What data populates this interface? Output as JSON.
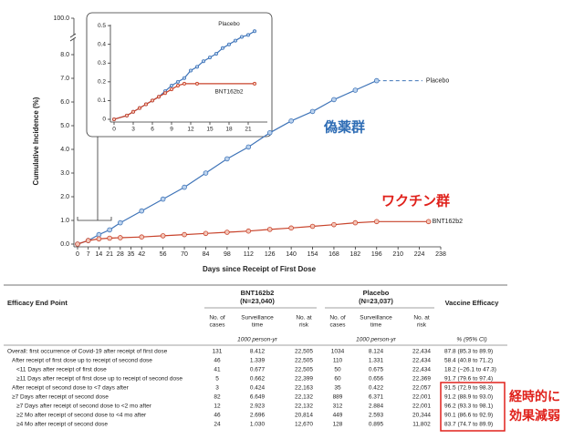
{
  "chart_data": [
    {
      "type": "line",
      "xlabel": "Days since Receipt of First Dose",
      "ylabel": "Cumulative Incidence (%)",
      "xlim": [
        0,
        238
      ],
      "xticks": [
        0,
        7,
        14,
        21,
        28,
        35,
        42,
        56,
        70,
        84,
        98,
        112,
        126,
        140,
        154,
        168,
        182,
        196,
        210,
        224,
        238
      ],
      "ylim": [
        0,
        8.8
      ],
      "yticks": [
        {
          "value": 0,
          "label": "0.0"
        },
        {
          "value": 1,
          "label": "1.0"
        },
        {
          "value": 2,
          "label": "2.0"
        },
        {
          "value": 3,
          "label": "3.0"
        },
        {
          "value": 4,
          "label": "4.0"
        },
        {
          "value": 5,
          "label": "5.0"
        },
        {
          "value": 6,
          "label": "6.0"
        },
        {
          "value": 7,
          "label": "7.0"
        },
        {
          "value": 8,
          "label": "8.0"
        }
      ],
      "ybreak_tick": {
        "value": 100,
        "label": "100.0"
      },
      "series": [
        {
          "name": "Placebo",
          "color": "#3f74b8",
          "x": [
            0,
            7,
            14,
            21,
            28,
            42,
            56,
            70,
            84,
            98,
            112,
            126,
            140,
            154,
            168,
            182,
            196
          ],
          "values": [
            0,
            0.15,
            0.4,
            0.6,
            0.9,
            1.4,
            1.9,
            2.4,
            3.0,
            3.6,
            4.1,
            4.7,
            5.2,
            5.6,
            6.1,
            6.5,
            6.9
          ],
          "dashed_x": [
            196,
            226
          ],
          "dashed_values": [
            6.9,
            6.9
          ]
        },
        {
          "name": "BNT162b2",
          "color": "#c8432b",
          "x": [
            0,
            7,
            14,
            21,
            28,
            42,
            56,
            70,
            84,
            98,
            112,
            126,
            140,
            154,
            168,
            182,
            196,
            230
          ],
          "values": [
            0,
            0.15,
            0.22,
            0.25,
            0.27,
            0.3,
            0.35,
            0.4,
            0.45,
            0.5,
            0.55,
            0.62,
            0.68,
            0.75,
            0.82,
            0.9,
            0.95,
            0.95
          ]
        }
      ]
    },
    {
      "type": "line",
      "xlim": [
        0,
        24
      ],
      "xticks": [
        0,
        3,
        6,
        9,
        12,
        15,
        18,
        21
      ],
      "ylim": [
        0,
        0.52
      ],
      "yticks": [
        0,
        0.1,
        0.2,
        0.3,
        0.4,
        0.5
      ],
      "series": [
        {
          "name": "Placebo",
          "color": "#3f74b8",
          "x": [
            0,
            2,
            3,
            4,
            5,
            6,
            7,
            8,
            9,
            10,
            11,
            12,
            13,
            14,
            15,
            16,
            17,
            18,
            19,
            20,
            21,
            22
          ],
          "values": [
            0,
            0.02,
            0.04,
            0.06,
            0.08,
            0.1,
            0.12,
            0.15,
            0.18,
            0.2,
            0.22,
            0.26,
            0.28,
            0.31,
            0.33,
            0.35,
            0.38,
            0.4,
            0.42,
            0.44,
            0.45,
            0.47
          ]
        },
        {
          "name": "BNT162b2",
          "color": "#c8432b",
          "x": [
            0,
            2,
            3,
            4,
            5,
            6,
            7,
            8,
            9,
            10,
            11,
            13,
            22
          ],
          "values": [
            0,
            0.02,
            0.04,
            0.06,
            0.08,
            0.1,
            0.12,
            0.14,
            0.16,
            0.18,
            0.19,
            0.19,
            0.19
          ]
        }
      ]
    }
  ],
  "annotations": {
    "placebo_group": "偽薬群",
    "vaccine_group": "ワクチン群",
    "waning": [
      "経時的に",
      "効果減弱"
    ]
  },
  "table": {
    "row_header": "Efficacy End Point",
    "efficacy_header": "Vaccine Efficacy",
    "efficacy_unit": "% (95% CI)",
    "groups": [
      {
        "name": "BNT162b2",
        "n": "(N=23,040)",
        "columns": [
          [
            "No. of",
            "cases"
          ],
          [
            "Surveillance",
            "time"
          ],
          [
            "No. at",
            "risk"
          ]
        ],
        "unit": "1000 person-yr"
      },
      {
        "name": "Placebo",
        "n": "(N=23,037)",
        "columns": [
          [
            "No. of",
            "cases"
          ],
          [
            "Surveillance",
            "time"
          ],
          [
            "No. at",
            "risk"
          ]
        ],
        "unit": "1000 person-yr"
      }
    ],
    "rows": [
      {
        "label": "Overall: first occurrence of Covid-19 after receipt of first dose",
        "values": [
          "131",
          "8.412",
          "22,505",
          "1034",
          "8.124",
          "22,434"
        ],
        "efficacy": "87.8 (85.3 to 89.9)"
      },
      {
        "label": "After receipt of first dose up to receipt of second dose",
        "values": [
          "46",
          "1.339",
          "22,505",
          "110",
          "1.331",
          "22,434"
        ],
        "efficacy": "58.4 (40.8 to 71.2)"
      },
      {
        "label": "<11 Days after receipt of first dose",
        "values": [
          "41",
          "0.677",
          "22,505",
          "50",
          "0.675",
          "22,434"
        ],
        "efficacy": "18.2 (−26.1 to 47.3)"
      },
      {
        "label": "≥11 Days after receipt of first dose up to receipt of second dose",
        "values": [
          "5",
          "0.662",
          "22,399",
          "60",
          "0.656",
          "22,369"
        ],
        "efficacy": "91.7 (79.6 to 97.4)"
      },
      {
        "label": "After receipt of second dose to <7 days after",
        "values": [
          "3",
          "0.424",
          "22,163",
          "35",
          "0.422",
          "22,057"
        ],
        "efficacy": "91.5 (72.9 to 98.3)"
      },
      {
        "label": "≥7 Days after receipt of second dose",
        "values": [
          "82",
          "6.649",
          "22,132",
          "889",
          "6.371",
          "22,001"
        ],
        "efficacy": "91.2 (88.9 to 93.0)"
      },
      {
        "label": "≥7 Days after receipt of second dose to <2 mo after",
        "values": [
          "12",
          "2.923",
          "22,132",
          "312",
          "2.884",
          "22,001"
        ],
        "efficacy": "96.2 (93.3 to 98.1)"
      },
      {
        "label": "≥2 Mo after receipt of second dose to <4 mo after",
        "values": [
          "46",
          "2.696",
          "20,814",
          "449",
          "2.593",
          "20,344"
        ],
        "efficacy": "90.1 (86.6 to 92.9)"
      },
      {
        "label": "≥4 Mo after receipt of second dose",
        "values": [
          "24",
          "1.030",
          "12,670",
          "128",
          "0.895",
          "11,802"
        ],
        "efficacy": "83.7 (74.7 to 89.9)"
      }
    ]
  }
}
